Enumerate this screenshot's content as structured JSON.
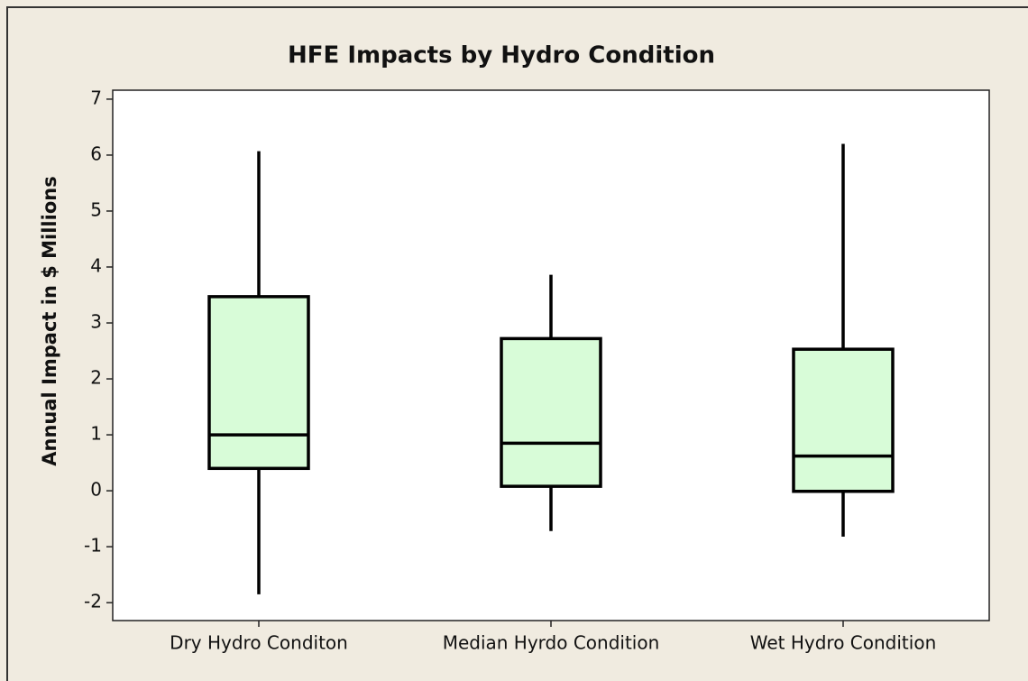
{
  "chart_data": {
    "type": "box",
    "title": "HFE Impacts by Hydro Condition",
    "ylabel": "Annual Impact in $ Millions",
    "categories": [
      "Dry Hydro Conditon",
      "Median Hyrdo Condition",
      "Wet Hydro Condition"
    ],
    "min": [
      -1.85,
      -0.72,
      -0.82
    ],
    "q1": [
      0.4,
      0.08,
      -0.01
    ],
    "median": [
      1.0,
      0.85,
      0.62
    ],
    "q3": [
      3.47,
      2.72,
      2.53
    ],
    "max": [
      6.07,
      3.86,
      6.2
    ],
    "color": "#d8fcd8",
    "ylim": [
      -2.32,
      7.16
    ],
    "yticks": [
      -2,
      -1,
      0,
      1,
      2,
      3,
      4,
      5,
      6,
      7
    ],
    "grid": false
  }
}
